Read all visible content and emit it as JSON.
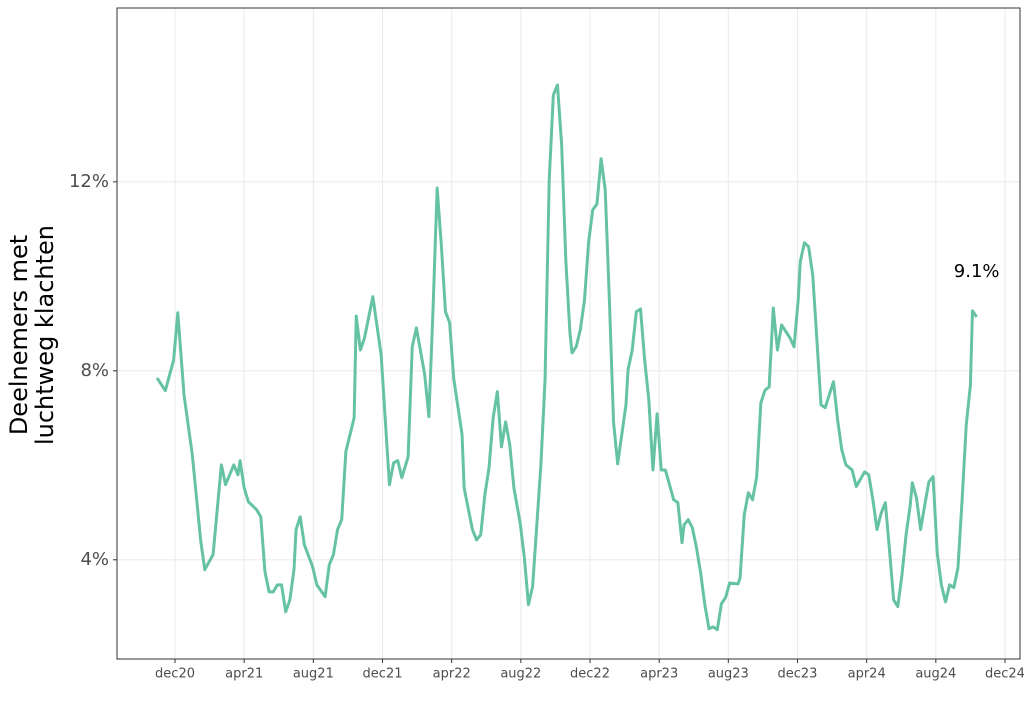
{
  "chart_data": {
    "type": "line",
    "y_label": [
      "Deelnemers met",
      "luchtweg klachten"
    ],
    "annotation": "9.1%",
    "color": "#66c2a5",
    "grid": true,
    "xlim": [
      2020.637,
      2024.989
    ],
    "ylim": [
      1.9,
      15.68
    ],
    "xticks": [
      {
        "value": 2020.9167,
        "label": "dec20"
      },
      {
        "value": 2021.25,
        "label": "apr21"
      },
      {
        "value": 2021.5833,
        "label": "aug21"
      },
      {
        "value": 2021.9167,
        "label": "dec21"
      },
      {
        "value": 2022.25,
        "label": "apr22"
      },
      {
        "value": 2022.5833,
        "label": "aug22"
      },
      {
        "value": 2022.9167,
        "label": "dec22"
      },
      {
        "value": 2023.25,
        "label": "apr23"
      },
      {
        "value": 2023.5833,
        "label": "aug23"
      },
      {
        "value": 2023.9167,
        "label": "dec23"
      },
      {
        "value": 2024.25,
        "label": "apr24"
      },
      {
        "value": 2024.5833,
        "label": "aug24"
      },
      {
        "value": 2024.9167,
        "label": "dec24"
      }
    ],
    "yticks": [
      {
        "value": 4,
        "label": "4%"
      },
      {
        "value": 8,
        "label": "8%"
      },
      {
        "value": 12,
        "label": "12%"
      }
    ],
    "x": [
      2020.83,
      2020.87,
      2020.91,
      2020.93,
      2020.96,
      2021.0,
      2021.04,
      2021.06,
      2021.1,
      2021.14,
      2021.16,
      2021.2,
      2021.22,
      2021.23,
      2021.25,
      2021.27,
      2021.31,
      2021.33,
      2021.35,
      2021.37,
      2021.39,
      2021.41,
      2021.43,
      2021.45,
      2021.47,
      2021.49,
      2021.5,
      2021.52,
      2021.54,
      2021.58,
      2021.6,
      2021.64,
      2021.66,
      2021.68,
      2021.7,
      2021.72,
      2021.74,
      2021.78,
      2021.79,
      2021.81,
      2021.83,
      2021.87,
      2021.91,
      2021.93,
      2021.95,
      2021.97,
      2021.99,
      2022.01,
      2022.04,
      2022.06,
      2022.08,
      2022.12,
      2022.14,
      2022.16,
      2022.18,
      2022.2,
      2022.22,
      2022.24,
      2022.26,
      2022.3,
      2022.31,
      2022.35,
      2022.37,
      2022.39,
      2022.41,
      2022.43,
      2022.45,
      2022.47,
      2022.49,
      2022.51,
      2022.53,
      2022.55,
      2022.58,
      2022.6,
      2022.62,
      2022.64,
      2022.68,
      2022.7,
      2022.72,
      2022.74,
      2022.76,
      2022.78,
      2022.8,
      2022.82,
      2022.83,
      2022.85,
      2022.87,
      2022.89,
      2022.91,
      2022.93,
      2022.95,
      2022.97,
      2022.99,
      2023.01,
      2023.03,
      2023.05,
      2023.09,
      2023.1,
      2023.12,
      2023.14,
      2023.16,
      2023.18,
      2023.2,
      2023.22,
      2023.24,
      2023.26,
      2023.28,
      2023.32,
      2023.34,
      2023.36,
      2023.37,
      2023.39,
      2023.41,
      2023.43,
      2023.45,
      2023.47,
      2023.49,
      2023.51,
      2023.53,
      2023.55,
      2023.57,
      2023.59,
      2023.63,
      2023.64,
      2023.66,
      2023.68,
      2023.7,
      2023.72,
      2023.74,
      2023.76,
      2023.78,
      2023.8,
      2023.82,
      2023.84,
      2023.88,
      2023.9,
      2023.92,
      2023.93,
      2023.95,
      2023.97,
      2023.99,
      2024.01,
      2024.03,
      2024.05,
      2024.09,
      2024.11,
      2024.13,
      2024.15,
      2024.18,
      2024.2,
      2024.24,
      2024.26,
      2024.28,
      2024.3,
      2024.32,
      2024.34,
      2024.36,
      2024.38,
      2024.4,
      2024.42,
      2024.44,
      2024.46,
      2024.47,
      2024.49,
      2024.51,
      2024.53,
      2024.55,
      2024.57,
      2024.59,
      2024.61,
      2024.63,
      2024.65,
      2024.67,
      2024.69,
      2024.71,
      2024.73,
      2024.75,
      2024.76,
      2024.78
    ],
    "values": [
      7.85,
      7.58,
      8.23,
      9.23,
      7.49,
      6.22,
      4.42,
      3.79,
      4.11,
      6.01,
      5.59,
      6.01,
      5.8,
      6.1,
      5.52,
      5.23,
      5.06,
      4.91,
      3.75,
      3.32,
      3.32,
      3.47,
      3.47,
      2.9,
      3.15,
      3.79,
      4.64,
      4.91,
      4.32,
      3.85,
      3.47,
      3.22,
      3.89,
      4.11,
      4.64,
      4.85,
      6.29,
      7.01,
      9.16,
      8.44,
      8.7,
      9.57,
      8.34,
      6.96,
      5.59,
      6.05,
      6.1,
      5.74,
      6.18,
      8.51,
      8.91,
      7.92,
      7.03,
      9.29,
      11.87,
      10.67,
      9.25,
      9.02,
      7.83,
      6.65,
      5.52,
      4.64,
      4.42,
      4.53,
      5.38,
      5.95,
      7.01,
      7.56,
      6.39,
      6.92,
      6.43,
      5.52,
      4.78,
      4.06,
      3.05,
      3.43,
      6.01,
      7.81,
      12.04,
      13.84,
      14.05,
      12.78,
      10.35,
      8.8,
      8.38,
      8.51,
      8.87,
      9.5,
      10.73,
      11.41,
      11.53,
      12.49,
      11.83,
      9.5,
      6.92,
      6.03,
      7.28,
      8.02,
      8.44,
      9.25,
      9.31,
      8.23,
      7.39,
      5.9,
      7.09,
      5.9,
      5.9,
      5.27,
      5.21,
      4.36,
      4.74,
      4.85,
      4.68,
      4.25,
      3.72,
      3.05,
      2.54,
      2.58,
      2.52,
      3.07,
      3.2,
      3.51,
      3.49,
      3.62,
      4.95,
      5.42,
      5.27,
      5.76,
      7.32,
      7.59,
      7.66,
      9.33,
      8.44,
      8.97,
      8.7,
      8.51,
      9.5,
      10.31,
      10.71,
      10.63,
      10.03,
      8.66,
      7.28,
      7.22,
      7.77,
      6.96,
      6.33,
      6.01,
      5.9,
      5.55,
      5.86,
      5.8,
      5.27,
      4.64,
      4.99,
      5.21,
      4.21,
      3.15,
      3.01,
      3.68,
      4.53,
      5.16,
      5.63,
      5.31,
      4.64,
      5.16,
      5.65,
      5.76,
      4.15,
      3.47,
      3.11,
      3.47,
      3.41,
      3.83,
      5.27,
      6.86,
      7.7,
      9.27,
      9.14
    ]
  }
}
